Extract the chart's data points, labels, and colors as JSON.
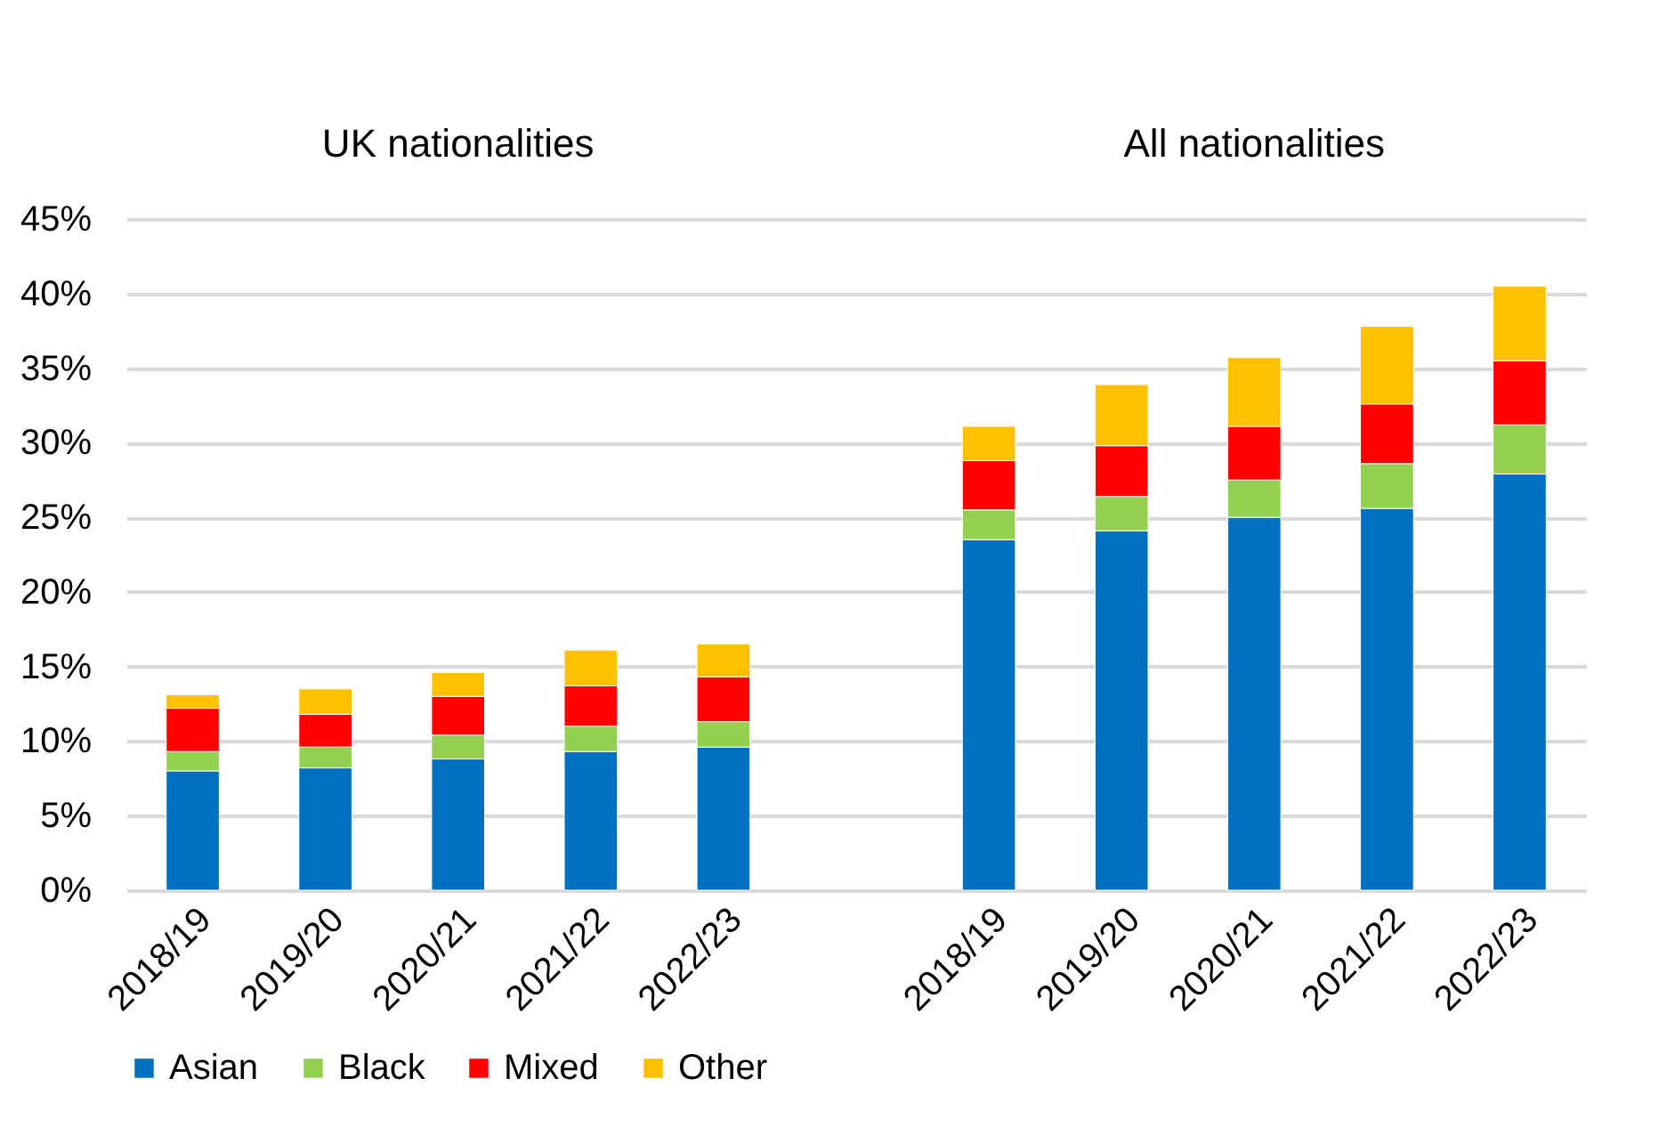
{
  "chart_data": {
    "type": "bar",
    "stacked": true,
    "categories": [
      "2018/19",
      "2019/20",
      "2020/21",
      "2021/22",
      "2022/23",
      null,
      "2018/19",
      "2019/20",
      "2020/21",
      "2021/22",
      "2022/23"
    ],
    "series": [
      {
        "name": "Asian",
        "color": "#0070c0",
        "values": [
          8.0,
          8.2,
          8.8,
          9.3,
          9.6,
          null,
          23.5,
          24.1,
          25.0,
          25.6,
          27.9
        ]
      },
      {
        "name": "Black",
        "color": "#92d050",
        "values": [
          1.3,
          1.4,
          1.6,
          1.7,
          1.7,
          null,
          2.0,
          2.3,
          2.5,
          3.0,
          3.3
        ]
      },
      {
        "name": "Mixed",
        "color": "#ff0000",
        "values": [
          2.9,
          2.2,
          2.6,
          2.7,
          3.0,
          null,
          3.3,
          3.4,
          3.6,
          4.0,
          4.3
        ]
      },
      {
        "name": "Other",
        "color": "#ffc000",
        "values": [
          0.9,
          1.7,
          1.6,
          2.4,
          2.2,
          null,
          2.3,
          4.1,
          4.6,
          5.2,
          5.0
        ]
      }
    ],
    "ylim": [
      0,
      45
    ],
    "yticks": [
      {
        "value": 0,
        "label": "0%"
      },
      {
        "value": 5,
        "label": "5%"
      },
      {
        "value": 10,
        "label": "10%"
      },
      {
        "value": 15,
        "label": "15%"
      },
      {
        "value": 20,
        "label": "20%"
      },
      {
        "value": 25,
        "label": "25%"
      },
      {
        "value": 30,
        "label": "30%"
      },
      {
        "value": 35,
        "label": "35%"
      },
      {
        "value": 40,
        "label": "40%"
      },
      {
        "value": 45,
        "label": "45%"
      }
    ],
    "annotations": [
      "UK nationalities",
      "All nationalities"
    ],
    "grid": "y",
    "legend": "bottom"
  }
}
